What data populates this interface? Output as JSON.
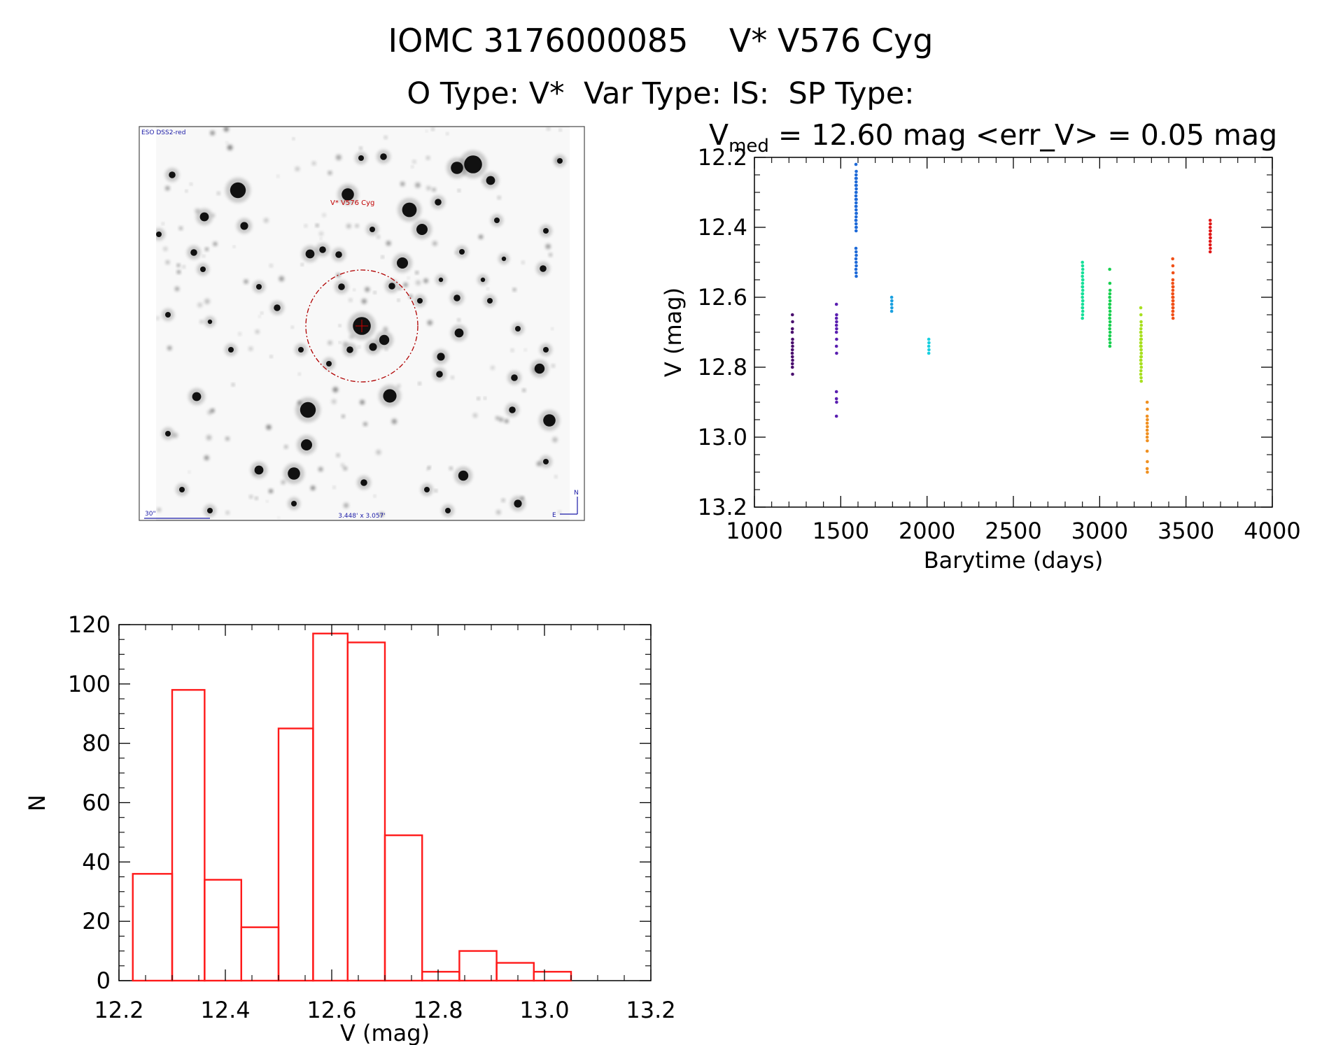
{
  "header": {
    "title_line1": "IOMC 3176000085    V* V576 Cyg",
    "title_line2": "O Type: V*  Var Type: IS:  SP Type:"
  },
  "finder_image": {
    "survey_label": "ESO DSS2-red",
    "target_label": "V* V576 Cyg",
    "scale_label": "30\"",
    "fov_label": "3.448' x 3.057'",
    "north_label": "N",
    "east_label": "E"
  },
  "colors": {
    "histogram": "#ff1a1a",
    "circle": "#b00000",
    "compass": "#1a1aa6"
  },
  "chart_data": [
    {
      "type": "scatter",
      "title_prefix": "V",
      "title_subscript": "med",
      "title_suffix": " = 12.60 mag <err_V> = 0.05 mag",
      "xlabel": "Barytime (days)",
      "ylabel": "V (mag)",
      "xlim": [
        1000,
        4000
      ],
      "ylim": [
        13.2,
        12.2
      ],
      "y_inverted": true,
      "xticks": [
        1000,
        1500,
        2000,
        2500,
        3000,
        3500,
        4000
      ],
      "yticks": [
        "12.2",
        "12.4",
        "12.6",
        "12.8",
        "13.0",
        "13.2"
      ],
      "series": [
        {
          "name": "epoch-1220",
          "color": "#4a0f6e",
          "x": [
            1220,
            1221,
            1220,
            1219,
            1221,
            1220,
            1221,
            1220,
            1219,
            1220,
            1221,
            1220,
            1220,
            1221
          ],
          "y": [
            12.65,
            12.67,
            12.69,
            12.7,
            12.72,
            12.73,
            12.74,
            12.75,
            12.76,
            12.77,
            12.78,
            12.79,
            12.8,
            12.82
          ]
        },
        {
          "name": "epoch-1475",
          "color": "#5a1fb0",
          "x": [
            1475,
            1476,
            1475,
            1476,
            1475,
            1476,
            1475,
            1476,
            1475,
            1476,
            1475,
            1475,
            1476,
            1475
          ],
          "y": [
            12.62,
            12.65,
            12.66,
            12.67,
            12.68,
            12.69,
            12.7,
            12.72,
            12.74,
            12.76,
            12.87,
            12.89,
            12.9,
            12.94
          ]
        },
        {
          "name": "epoch-1590",
          "color": "#1e6ad8",
          "x": [
            1588,
            1589,
            1590,
            1589,
            1588,
            1590,
            1589,
            1588,
            1590,
            1589,
            1588,
            1589,
            1590,
            1589,
            1588,
            1589,
            1590,
            1589,
            1588,
            1590,
            1589,
            1588,
            1589,
            1590,
            1588,
            1589,
            1590,
            1588,
            1589,
            1590,
            1588,
            1589,
            1590,
            1588,
            1589,
            1590
          ],
          "y": [
            12.22,
            12.25,
            12.26,
            12.27,
            12.28,
            12.29,
            12.3,
            12.31,
            12.32,
            12.33,
            12.34,
            12.35,
            12.36,
            12.37,
            12.38,
            12.39,
            12.4,
            12.41,
            12.26,
            12.28,
            12.3,
            12.32,
            12.34,
            12.36,
            12.38,
            12.4,
            12.24,
            12.46,
            12.47,
            12.48,
            12.49,
            12.5,
            12.51,
            12.52,
            12.53,
            12.54
          ]
        },
        {
          "name": "epoch-1795",
          "color": "#1aa0e0",
          "x": [
            1795,
            1796,
            1795,
            1796,
            1795
          ],
          "y": [
            12.6,
            12.61,
            12.62,
            12.63,
            12.64
          ]
        },
        {
          "name": "epoch-2010",
          "color": "#18d0e0",
          "x": [
            2010,
            2011,
            2010,
            2011,
            2010
          ],
          "y": [
            12.72,
            12.73,
            12.74,
            12.75,
            12.76
          ]
        },
        {
          "name": "epoch-2905",
          "color": "#18e09a",
          "x": [
            2900,
            2901,
            2902,
            2901,
            2900,
            2902,
            2901,
            2900,
            2902,
            2901,
            2900,
            2902,
            2901,
            2900,
            2902,
            2901,
            2900,
            2902,
            2901,
            2900,
            2902,
            2901
          ],
          "y": [
            12.5,
            12.51,
            12.52,
            12.53,
            12.54,
            12.55,
            12.56,
            12.57,
            12.58,
            12.59,
            12.6,
            12.61,
            12.62,
            12.63,
            12.64,
            12.65,
            12.66,
            12.55,
            12.57,
            12.59,
            12.61,
            12.63
          ]
        },
        {
          "name": "epoch-3060",
          "color": "#18d050",
          "x": [
            3058,
            3059,
            3060,
            3059,
            3058,
            3060,
            3059,
            3058,
            3060,
            3059,
            3058,
            3060,
            3059,
            3058,
            3060,
            3059,
            3058,
            3060,
            3059,
            3058
          ],
          "y": [
            12.52,
            12.56,
            12.58,
            12.59,
            12.6,
            12.61,
            12.62,
            12.63,
            12.64,
            12.65,
            12.66,
            12.67,
            12.68,
            12.69,
            12.7,
            12.71,
            12.72,
            12.73,
            12.74,
            12.62
          ]
        },
        {
          "name": "epoch-3240",
          "color": "#a8e020",
          "x": [
            3238,
            3239,
            3240,
            3241,
            3239,
            3238,
            3240,
            3241,
            3239,
            3238,
            3240,
            3241,
            3239,
            3238,
            3240,
            3241,
            3239,
            3238,
            3240,
            3241,
            3239,
            3238,
            3240,
            3241,
            3239,
            3238,
            3240,
            3241,
            3239,
            3238
          ],
          "y": [
            12.63,
            12.65,
            12.67,
            12.68,
            12.69,
            12.7,
            12.71,
            12.72,
            12.73,
            12.74,
            12.75,
            12.76,
            12.77,
            12.78,
            12.79,
            12.8,
            12.81,
            12.82,
            12.83,
            12.84,
            12.7,
            12.72,
            12.74,
            12.76,
            12.78,
            12.73,
            12.75,
            12.77,
            12.79,
            12.74
          ]
        },
        {
          "name": "epoch-3275",
          "color": "#f09020",
          "x": [
            3275,
            3276,
            3275,
            3276,
            3275,
            3276,
            3275,
            3276,
            3275,
            3276,
            3275,
            3276,
            3275,
            3276
          ],
          "y": [
            12.9,
            12.92,
            12.94,
            12.95,
            12.96,
            12.97,
            12.98,
            12.99,
            13.0,
            13.01,
            13.04,
            13.07,
            13.09,
            13.1
          ]
        },
        {
          "name": "epoch-3425",
          "color": "#f05018",
          "x": [
            3423,
            3424,
            3425,
            3424,
            3423,
            3425,
            3424,
            3423,
            3425,
            3424,
            3423,
            3425,
            3424,
            3423,
            3425,
            3424,
            3423,
            3425,
            3424,
            3423,
            3425,
            3424
          ],
          "y": [
            12.49,
            12.51,
            12.53,
            12.55,
            12.56,
            12.57,
            12.58,
            12.59,
            12.6,
            12.61,
            12.62,
            12.63,
            12.64,
            12.65,
            12.66,
            12.57,
            12.59,
            12.61,
            12.63,
            12.6,
            12.62,
            12.64
          ]
        },
        {
          "name": "epoch-3640",
          "color": "#e01818",
          "x": [
            3640,
            3641,
            3640,
            3641,
            3640,
            3641,
            3640,
            3641,
            3640,
            3641,
            3640,
            3641,
            3640
          ],
          "y": [
            12.38,
            12.39,
            12.4,
            12.41,
            12.42,
            12.43,
            12.44,
            12.41,
            12.42,
            12.43,
            12.45,
            12.46,
            12.47
          ]
        }
      ]
    },
    {
      "type": "bar",
      "subtype": "histogram",
      "xlabel": "V (mag)",
      "ylabel": "N",
      "xlim": [
        12.2,
        13.2
      ],
      "ylim": [
        0,
        120
      ],
      "xticks": [
        "12.2",
        "12.4",
        "12.6",
        "12.8",
        "13.0",
        "13.2"
      ],
      "yticks": [
        "0",
        "20",
        "40",
        "60",
        "80",
        "100",
        "120"
      ],
      "bin_edges": [
        12.226,
        12.3,
        12.361,
        12.43,
        12.5,
        12.565,
        12.63,
        12.7,
        12.77,
        12.84,
        12.91,
        12.98,
        13.05,
        13.111
      ],
      "values": [
        36,
        98,
        34,
        18,
        85,
        117,
        114,
        49,
        3,
        10,
        6,
        3,
        0
      ]
    }
  ]
}
